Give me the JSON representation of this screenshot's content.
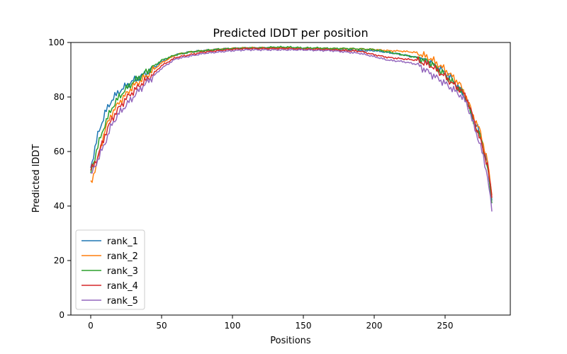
{
  "chart_data": {
    "type": "line",
    "title": "Predicted lDDT per position",
    "xlabel": "Positions",
    "ylabel": "Predicted lDDT",
    "xlim": [
      -14,
      296
    ],
    "ylim": [
      0,
      100
    ],
    "xticks": [
      0,
      50,
      100,
      150,
      200,
      250
    ],
    "yticks": [
      0,
      20,
      40,
      60,
      80,
      100
    ],
    "grid": false,
    "legend_position": "bottom-left",
    "series": [
      {
        "name": "rank_1",
        "color": "#1f77b4",
        "x": [
          0,
          5,
          10,
          15,
          20,
          25,
          30,
          35,
          40,
          50,
          60,
          70,
          80,
          90,
          100,
          110,
          120,
          130,
          140,
          150,
          160,
          170,
          180,
          190,
          200,
          210,
          220,
          230,
          240,
          250,
          255,
          260,
          265,
          270,
          275,
          280,
          283
        ],
        "y": [
          54,
          66,
          74,
          79,
          82,
          84,
          86,
          87.5,
          89,
          93,
          95.5,
          96.5,
          97,
          97.5,
          97.8,
          98,
          98,
          98,
          98,
          97.8,
          97.8,
          97.5,
          97.3,
          97,
          97,
          96.3,
          95.5,
          94.5,
          92.5,
          89,
          86.5,
          83,
          79,
          72,
          66,
          55,
          42
        ]
      },
      {
        "name": "rank_2",
        "color": "#ff7f0e",
        "x": [
          0,
          5,
          10,
          15,
          20,
          25,
          30,
          35,
          40,
          50,
          60,
          70,
          80,
          90,
          100,
          110,
          120,
          130,
          140,
          150,
          160,
          170,
          180,
          190,
          200,
          210,
          220,
          230,
          240,
          250,
          255,
          260,
          265,
          270,
          275,
          280,
          283
        ],
        "y": [
          48,
          57,
          68,
          74,
          78,
          81,
          84,
          86,
          88,
          92.5,
          95.5,
          96.5,
          97,
          97.5,
          97.8,
          98,
          98,
          98,
          98,
          97.8,
          97.8,
          97.7,
          97.7,
          97.6,
          97.4,
          97,
          96.8,
          96.3,
          94,
          90,
          87.5,
          85,
          80,
          73,
          67,
          56,
          44
        ]
      },
      {
        "name": "rank_3",
        "color": "#2ca02c",
        "x": [
          0,
          5,
          10,
          15,
          20,
          25,
          30,
          35,
          40,
          50,
          60,
          70,
          80,
          90,
          100,
          110,
          120,
          130,
          140,
          150,
          160,
          170,
          180,
          190,
          200,
          210,
          220,
          230,
          240,
          250,
          255,
          260,
          265,
          270,
          275,
          280,
          283
        ],
        "y": [
          52,
          62,
          70,
          76,
          80,
          83,
          85.5,
          87.5,
          89.5,
          93.5,
          95.5,
          96.5,
          97,
          97.5,
          97.8,
          98,
          98,
          98.3,
          98.3,
          98,
          98,
          97.8,
          97.8,
          97.6,
          97.4,
          96.5,
          95.5,
          94.5,
          92.5,
          88,
          85.5,
          83,
          79,
          71,
          65,
          54,
          41
        ]
      },
      {
        "name": "rank_4",
        "color": "#d62728",
        "x": [
          0,
          5,
          10,
          15,
          20,
          25,
          30,
          35,
          40,
          50,
          60,
          70,
          80,
          90,
          100,
          110,
          120,
          130,
          140,
          150,
          160,
          170,
          180,
          190,
          200,
          210,
          220,
          230,
          240,
          250,
          255,
          260,
          265,
          270,
          275,
          280,
          283
        ],
        "y": [
          53,
          58,
          66,
          72,
          76,
          79.5,
          82,
          84.5,
          86.5,
          91.5,
          94.5,
          95.5,
          96.5,
          97,
          97.5,
          97.8,
          97.8,
          97.8,
          97.8,
          97.5,
          97.5,
          97.3,
          97,
          96.8,
          95.5,
          94.5,
          94,
          93.5,
          91.5,
          87.5,
          85,
          83,
          80,
          72,
          64,
          55,
          43
        ]
      },
      {
        "name": "rank_5",
        "color": "#9467bd",
        "x": [
          0,
          5,
          10,
          15,
          20,
          25,
          30,
          35,
          40,
          50,
          60,
          70,
          80,
          90,
          100,
          110,
          120,
          130,
          140,
          150,
          160,
          170,
          180,
          190,
          200,
          210,
          220,
          230,
          240,
          250,
          255,
          260,
          265,
          270,
          275,
          280,
          283
        ],
        "y": [
          51,
          57,
          63,
          70,
          74,
          77,
          80,
          83,
          85.5,
          90.5,
          94,
          95,
          96,
          96.5,
          97,
          97.3,
          97.3,
          97.3,
          97.3,
          97.3,
          97.1,
          97,
          96.5,
          96,
          94.8,
          93.5,
          93,
          92,
          88.5,
          85,
          83,
          81,
          78,
          70,
          62,
          51,
          38
        ]
      }
    ]
  }
}
